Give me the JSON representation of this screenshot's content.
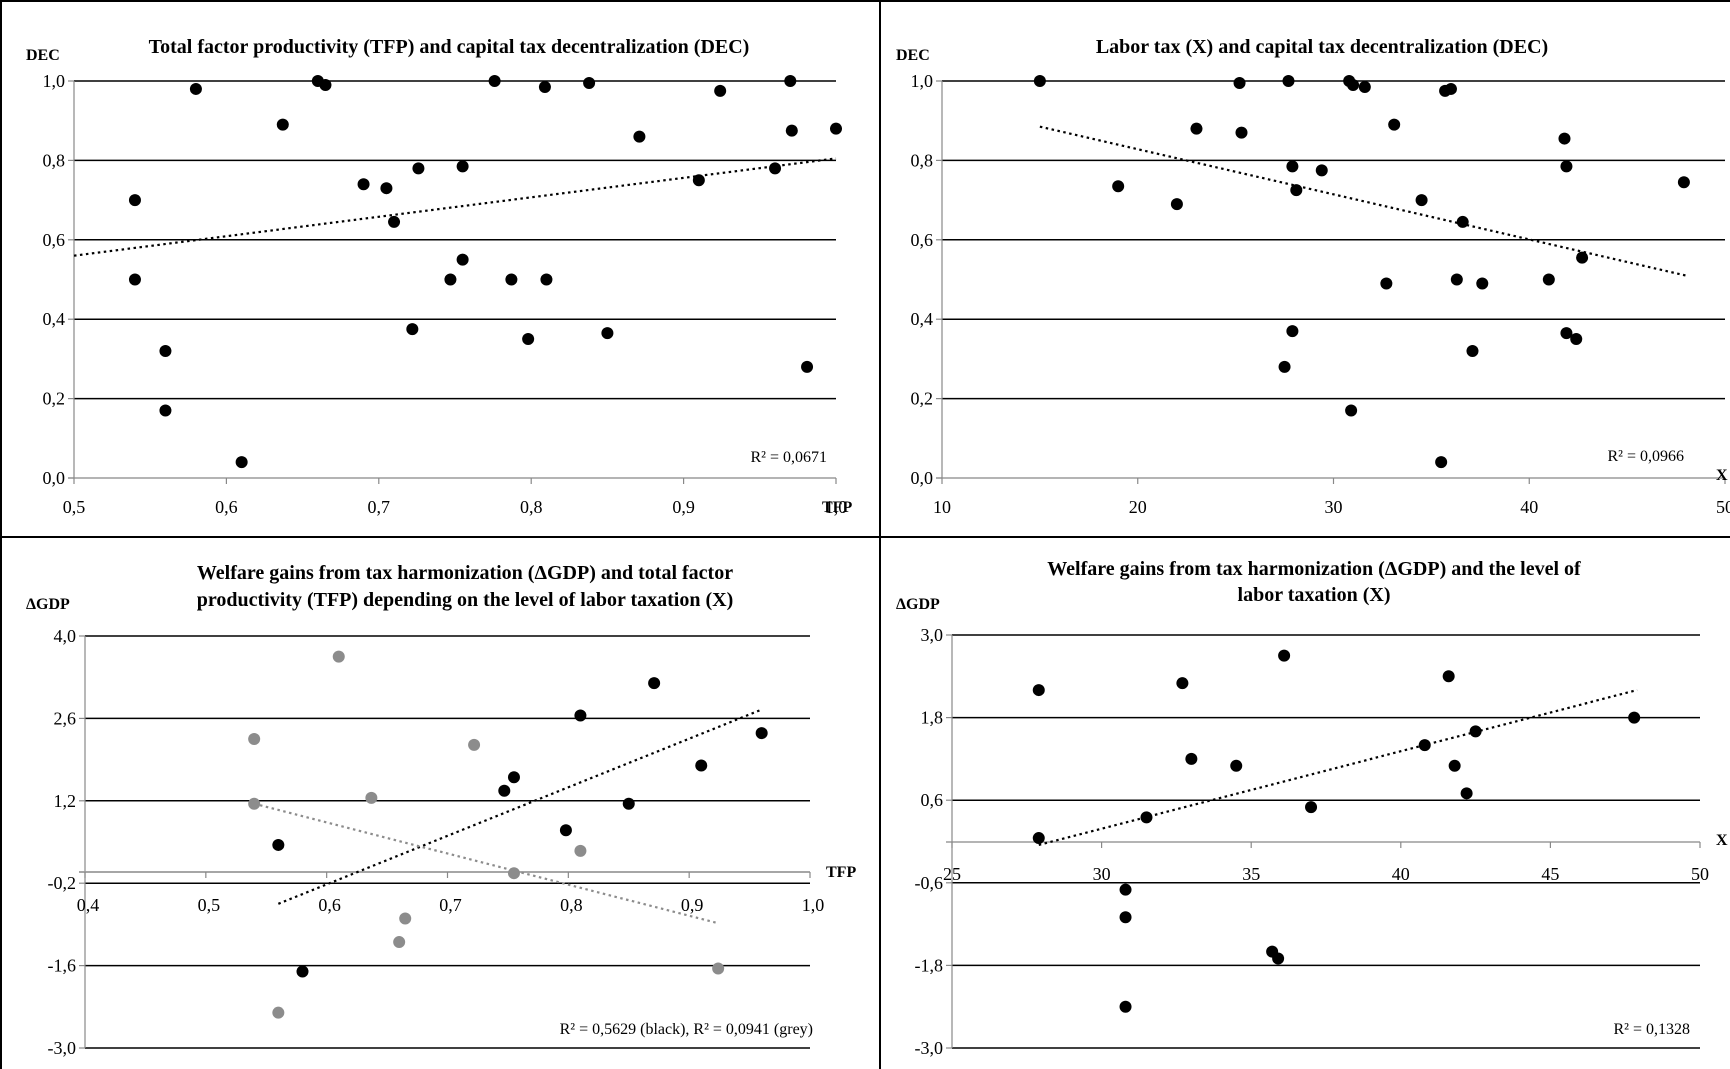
{
  "chart_data": [
    {
      "type": "scatter",
      "title_lines": [
        "Total factor productivity (TFP) and capital tax decentralization (DEC)"
      ],
      "xlabel": "TFP",
      "ylabel": "DEC",
      "xlim": [
        0.5,
        1.0
      ],
      "ylim": [
        0.0,
        1.0
      ],
      "x_ticks": [
        0.5,
        0.6,
        0.7,
        0.8,
        0.9,
        1.0
      ],
      "y_ticks": [
        0.0,
        0.2,
        0.4,
        0.6,
        0.8,
        1.0
      ],
      "x_tick_labels": [
        "0,5",
        "0,6",
        "0,7",
        "0,8",
        "0,9",
        "1,0"
      ],
      "y_tick_labels": [
        "0,0",
        "0,2",
        "0,4",
        "0,6",
        "0,8",
        "1,0"
      ],
      "grid": "horizontal",
      "r2_label": "R² = 0,0671",
      "series": [
        {
          "color": "#000000",
          "trend": [
            [
              0.5,
              0.56
            ],
            [
              1.0,
              0.805
            ]
          ],
          "points": [
            [
              0.54,
              0.7
            ],
            [
              0.54,
              0.5
            ],
            [
              0.56,
              0.32
            ],
            [
              0.56,
              0.17
            ],
            [
              0.58,
              0.98
            ],
            [
              0.61,
              0.04
            ],
            [
              0.637,
              0.89
            ],
            [
              0.66,
              1.0
            ],
            [
              0.665,
              0.99
            ],
            [
              0.69,
              0.74
            ],
            [
              0.705,
              0.73
            ],
            [
              0.71,
              0.645
            ],
            [
              0.722,
              0.375
            ],
            [
              0.726,
              0.78
            ],
            [
              0.747,
              0.5
            ],
            [
              0.755,
              0.55
            ],
            [
              0.755,
              0.785
            ],
            [
              0.776,
              1.0
            ],
            [
              0.787,
              0.5
            ],
            [
              0.798,
              0.35
            ],
            [
              0.809,
              0.985
            ],
            [
              0.81,
              0.5
            ],
            [
              0.838,
              0.995
            ],
            [
              0.85,
              0.365
            ],
            [
              0.871,
              0.86
            ],
            [
              0.91,
              0.75
            ],
            [
              0.924,
              0.975
            ],
            [
              0.96,
              0.78
            ],
            [
              0.97,
              1.0
            ],
            [
              0.971,
              0.875
            ],
            [
              0.981,
              0.28
            ],
            [
              1.0,
              0.88
            ]
          ]
        }
      ]
    },
    {
      "type": "scatter",
      "title_lines": [
        "Labor tax (X) and capital tax decentralization (DEC)"
      ],
      "xlabel": "X",
      "ylabel": "DEC",
      "xlim": [
        10,
        50
      ],
      "ylim": [
        0.0,
        1.0
      ],
      "x_ticks": [
        10,
        20,
        30,
        40,
        50
      ],
      "y_ticks": [
        0.0,
        0.2,
        0.4,
        0.6,
        0.8,
        1.0
      ],
      "x_tick_labels": [
        "10",
        "20",
        "30",
        "40",
        "50"
      ],
      "y_tick_labels": [
        "0,0",
        "0,2",
        "0,4",
        "0,6",
        "0,8",
        "1,0"
      ],
      "grid": "horizontal",
      "r2_label": "R² = 0,0966",
      "series": [
        {
          "color": "#000000",
          "trend": [
            [
              15,
              0.885
            ],
            [
              48,
              0.51
            ]
          ],
          "points": [
            [
              15,
              1.0
            ],
            [
              19,
              0.735
            ],
            [
              22,
              0.69
            ],
            [
              23,
              0.88
            ],
            [
              25.2,
              0.995
            ],
            [
              25.3,
              0.87
            ],
            [
              27.5,
              0.28
            ],
            [
              27.7,
              1.0
            ],
            [
              27.9,
              0.785
            ],
            [
              27.9,
              0.37
            ],
            [
              28.1,
              0.725
            ],
            [
              29.4,
              0.775
            ],
            [
              30.8,
              1.0
            ],
            [
              30.9,
              0.17
            ],
            [
              31,
              0.99
            ],
            [
              31.6,
              0.985
            ],
            [
              32.7,
              0.49
            ],
            [
              33.1,
              0.89
            ],
            [
              34.5,
              0.7
            ],
            [
              35.5,
              0.04
            ],
            [
              35.7,
              0.975
            ],
            [
              36,
              0.98
            ],
            [
              36.3,
              0.5
            ],
            [
              36.6,
              0.645
            ],
            [
              37.1,
              0.32
            ],
            [
              37.6,
              0.49
            ],
            [
              41,
              0.5
            ],
            [
              41.8,
              0.855
            ],
            [
              41.9,
              0.785
            ],
            [
              41.9,
              0.365
            ],
            [
              42.4,
              0.35
            ],
            [
              42.7,
              0.555
            ],
            [
              47.9,
              0.745
            ]
          ]
        }
      ]
    },
    {
      "type": "scatter",
      "title_lines": [
        "Welfare gains from tax harmonization (ΔGDP) and total factor",
        "productivity (TFP) depending on the level of labor taxation (X)"
      ],
      "xlabel": "TFP",
      "ylabel": "ΔGDP",
      "xlim": [
        0.4,
        1.0
      ],
      "ylim": [
        -3.0,
        4.0
      ],
      "x_ticks": [
        0.4,
        0.5,
        0.6,
        0.7,
        0.8,
        0.9,
        1.0
      ],
      "y_ticks": [
        -3.0,
        -1.6,
        -0.2,
        1.2,
        2.6,
        4.0
      ],
      "x_tick_labels": [
        "0,4",
        "0,5",
        "0,6",
        "0,7",
        "0,8",
        "0,9",
        "1,0"
      ],
      "y_tick_labels": [
        "-3,0",
        "-1,6",
        "-0,2",
        "1,2",
        "2,6",
        "4,0"
      ],
      "grid": "horizontal",
      "r2_label": "R² = 0,5629 (black), R² = 0,0941 (grey)",
      "series": [
        {
          "name": "black",
          "color": "#000000",
          "trend": [
            [
              0.56,
              -0.55
            ],
            [
              0.96,
              2.75
            ]
          ],
          "points": [
            [
              0.56,
              0.45
            ],
            [
              0.58,
              -1.7
            ],
            [
              0.747,
              1.37
            ],
            [
              0.755,
              1.6
            ],
            [
              0.798,
              0.7
            ],
            [
              0.81,
              2.65
            ],
            [
              0.85,
              1.15
            ],
            [
              0.871,
              3.2
            ],
            [
              0.91,
              1.8
            ],
            [
              0.96,
              2.35
            ]
          ]
        },
        {
          "name": "grey",
          "color": "#8c8c8c",
          "trend": [
            [
              0.54,
              1.15
            ],
            [
              0.924,
              -0.88
            ]
          ],
          "points": [
            [
              0.54,
              2.25
            ],
            [
              0.54,
              1.15
            ],
            [
              0.56,
              -2.4
            ],
            [
              0.61,
              3.65
            ],
            [
              0.637,
              1.25
            ],
            [
              0.66,
              -1.2
            ],
            [
              0.665,
              -0.8
            ],
            [
              0.722,
              2.15
            ],
            [
              0.755,
              -0.03
            ],
            [
              0.81,
              0.35
            ],
            [
              0.924,
              -1.65
            ]
          ]
        }
      ]
    },
    {
      "type": "scatter",
      "title_lines": [
        "Welfare gains from tax harmonization (ΔGDP) and the level of",
        "labor taxation (X)"
      ],
      "xlabel": "X",
      "ylabel": "ΔGDP",
      "xlim": [
        25,
        50
      ],
      "ylim": [
        -3.0,
        3.0
      ],
      "x_ticks": [
        25,
        30,
        35,
        40,
        45,
        50
      ],
      "y_ticks": [
        -3.0,
        -1.8,
        -0.6,
        0.6,
        1.8,
        3.0
      ],
      "x_tick_labels": [
        "25",
        "30",
        "35",
        "40",
        "45",
        "50"
      ],
      "y_tick_labels": [
        "-3,0",
        "-1,8",
        "-0,6",
        "0,6",
        "1,8",
        "3,0"
      ],
      "grid": "horizontal",
      "r2_label": "R² = 0,1328",
      "series": [
        {
          "color": "#000000",
          "trend": [
            [
              27.9,
              -0.05
            ],
            [
              47.9,
              2.2
            ]
          ],
          "points": [
            [
              27.9,
              2.2
            ],
            [
              27.9,
              0.05
            ],
            [
              30.8,
              -0.7
            ],
            [
              30.8,
              -1.1
            ],
            [
              30.8,
              -2.4
            ],
            [
              31.5,
              0.35
            ],
            [
              32.7,
              2.3
            ],
            [
              33,
              1.2
            ],
            [
              34.5,
              1.1
            ],
            [
              35.7,
              -1.6
            ],
            [
              35.9,
              -1.7
            ],
            [
              36.1,
              2.7
            ],
            [
              37,
              0.5
            ],
            [
              40.8,
              1.4
            ],
            [
              41.6,
              2.4
            ],
            [
              41.8,
              1.1
            ],
            [
              42.2,
              0.7
            ],
            [
              42.5,
              1.6
            ],
            [
              47.8,
              1.8
            ]
          ]
        }
      ]
    }
  ]
}
